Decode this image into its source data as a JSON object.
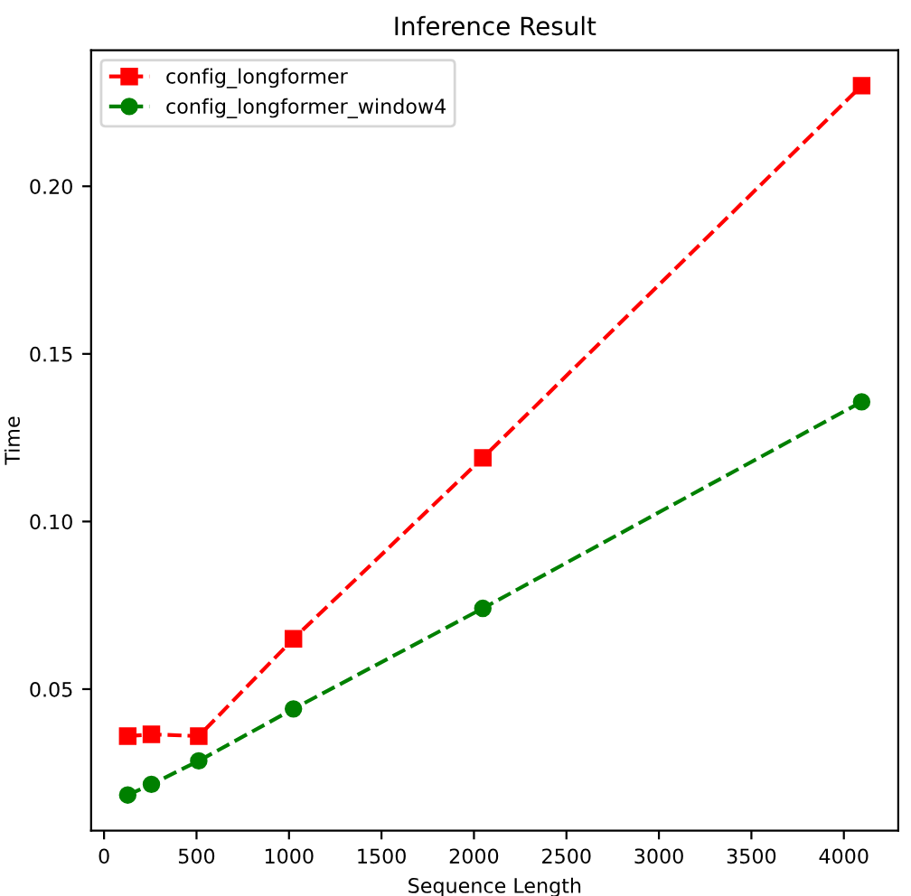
{
  "chart_data": {
    "type": "line",
    "title": "Inference Result",
    "xlabel": "Sequence Length",
    "ylabel": "Time",
    "x": [
      128,
      256,
      512,
      1024,
      2048,
      4096
    ],
    "series": [
      {
        "name": "config_longformer",
        "color": "#ff0000",
        "values": [
          0.036,
          0.0365,
          0.036,
          0.065,
          0.119,
          0.23
        ],
        "marker": "square"
      },
      {
        "name": "config_longformer_window4",
        "color": "#008000",
        "values": [
          0.0184,
          0.0216,
          0.0286,
          0.0441,
          0.0741,
          0.1357
        ],
        "marker": "circle"
      }
    ],
    "line_style": "dashed",
    "legend": "top left",
    "grid": false,
    "xlim": [
      -70,
      4294
    ],
    "ylim": [
      0.0078,
      0.2406
    ],
    "xticks": [
      0,
      500,
      1000,
      1500,
      2000,
      2500,
      3000,
      3500,
      4000
    ],
    "yticks": [
      0.05,
      {
        "value": 0.1,
        "label": "0.10"
      },
      0.15,
      {
        "value": 0.2,
        "label": "0.20"
      }
    ]
  }
}
